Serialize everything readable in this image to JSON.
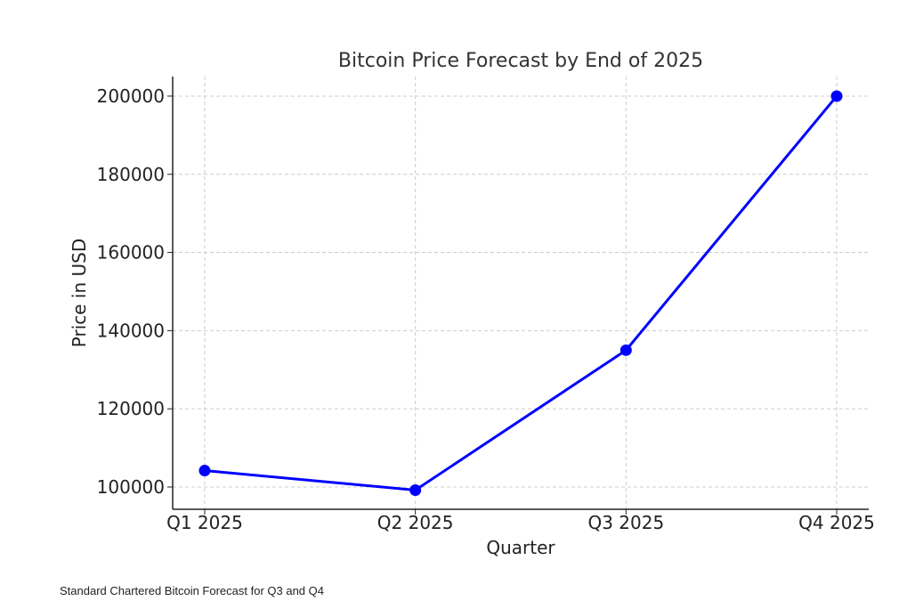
{
  "chart_data": {
    "type": "line",
    "title": "Bitcoin Price Forecast by End of 2025",
    "xlabel": "Quarter",
    "ylabel": "Price in USD",
    "categories": [
      "Q1 2025",
      "Q2 2025",
      "Q3 2025",
      "Q4 2025"
    ],
    "series": [
      {
        "name": "Price",
        "values": [
          104200,
          99200,
          135000,
          200000
        ],
        "color": "#0000ff",
        "marker": "circle"
      }
    ],
    "yticks": [
      100000,
      120000,
      140000,
      160000,
      180000,
      200000
    ],
    "ylim": [
      94300,
      205000
    ],
    "xlim": [
      -0.152,
      3.152
    ],
    "grid": true
  },
  "caption": "Standard Chartered Bitcoin Forecast for Q3 and Q4"
}
